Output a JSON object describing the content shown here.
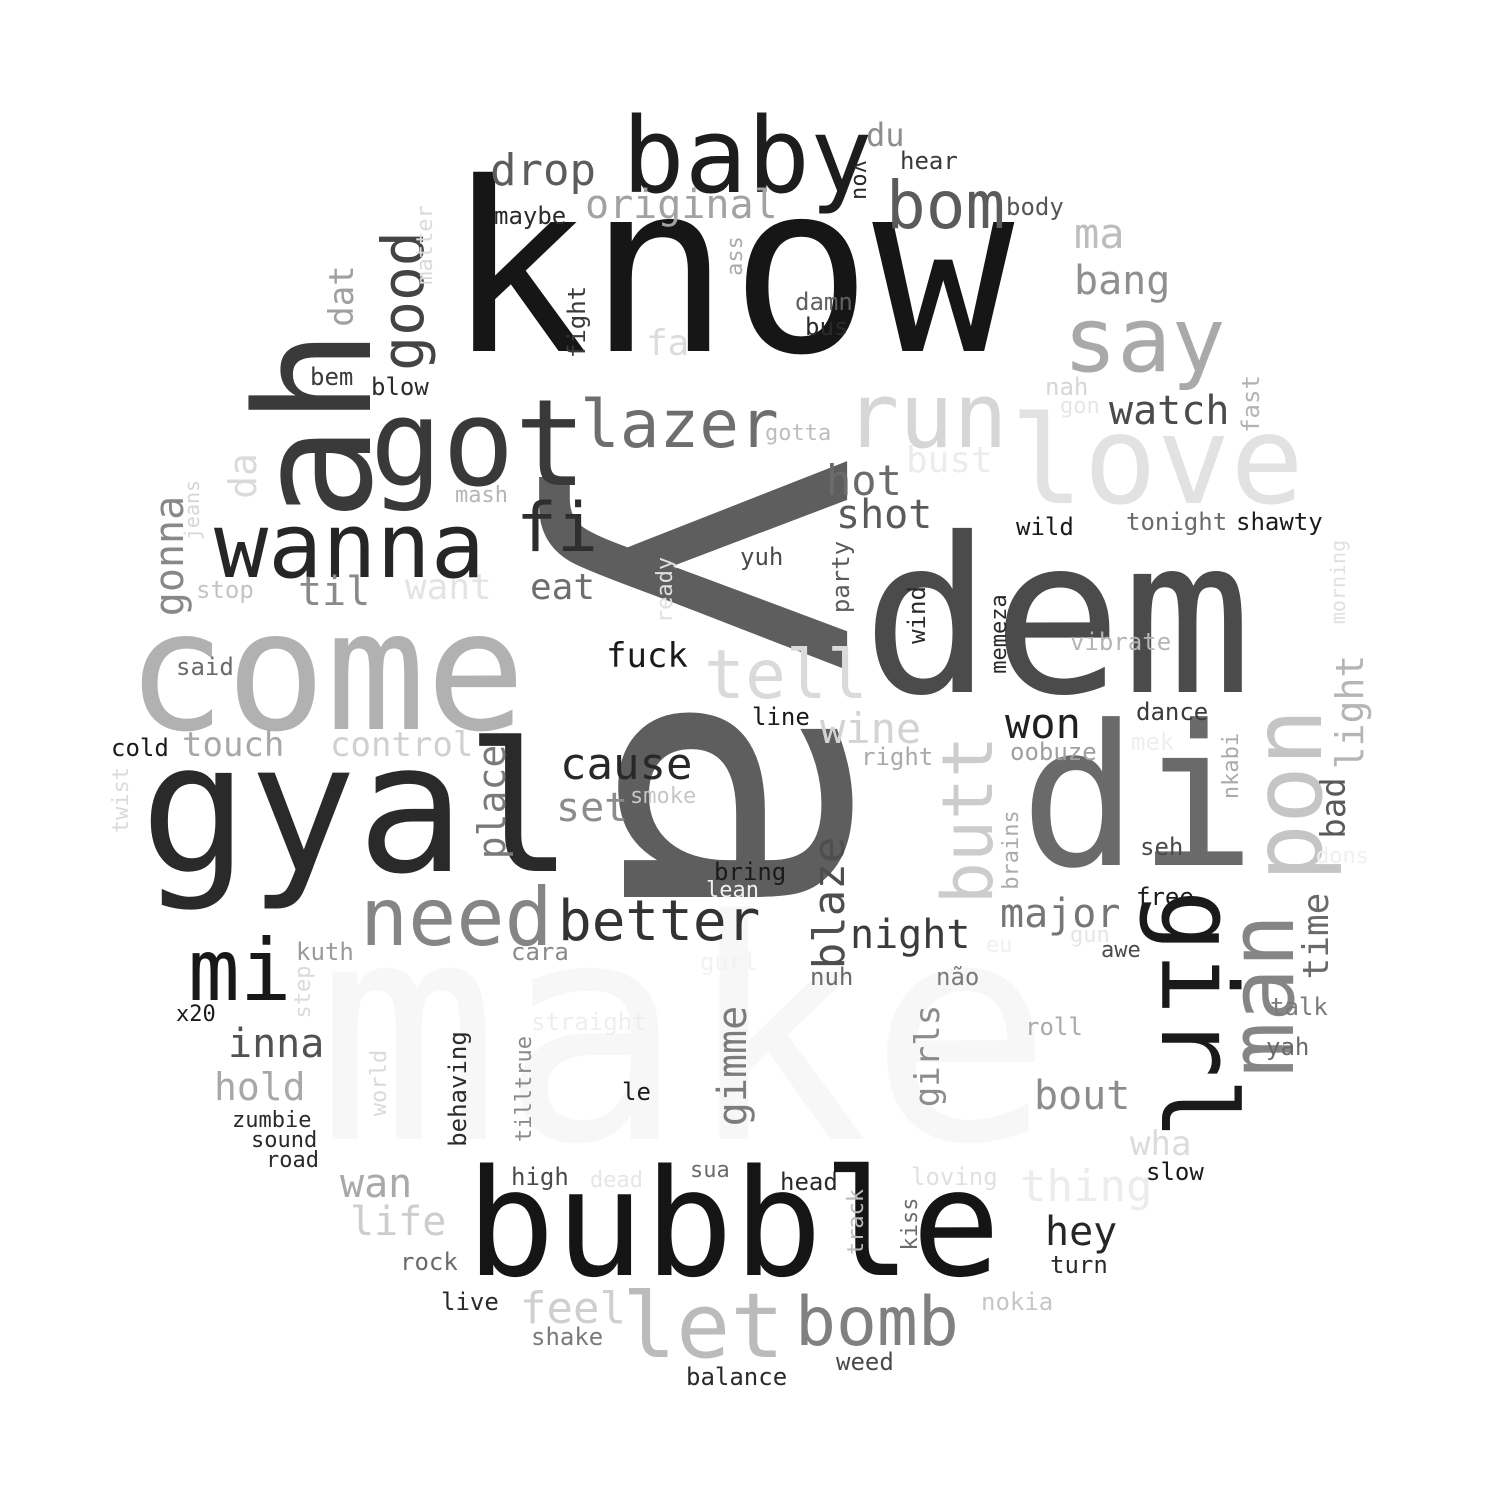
{
  "cloud": {
    "words": [
      {
        "text": "make",
        "c": "#f7f7f7"
      },
      {
        "text": "ya",
        "c": "#5e5e5e"
      },
      {
        "text": "know",
        "c": "#161616"
      },
      {
        "text": "dem",
        "c": "#4b4b4b"
      },
      {
        "text": "come",
        "c": "#b1b1b1"
      },
      {
        "text": "gyal",
        "c": "#2a2a2a"
      },
      {
        "text": "bubble",
        "c": "#151515"
      },
      {
        "text": "di",
        "c": "#6a6a6a"
      },
      {
        "text": "ah",
        "c": "#3a3a3a"
      },
      {
        "text": "love",
        "c": "#e2e2e2"
      },
      {
        "text": "baby",
        "c": "#1d1d1d"
      },
      {
        "text": "got",
        "c": "#393939"
      },
      {
        "text": "run",
        "c": "#d6d6d6"
      },
      {
        "text": "say",
        "c": "#a9a9a9"
      },
      {
        "text": "wanna",
        "c": "#262626"
      },
      {
        "text": "girl",
        "c": "#1a1a1a"
      },
      {
        "text": "man",
        "c": "#858585"
      },
      {
        "text": "pon",
        "c": "#c5c5c5"
      },
      {
        "text": "need",
        "c": "#858585"
      },
      {
        "text": "let",
        "c": "#bbbbbb"
      },
      {
        "text": "bomb",
        "c": "#808080"
      },
      {
        "text": "mi",
        "c": "#181818"
      },
      {
        "text": "bom",
        "c": "#5b5b5b"
      },
      {
        "text": "lazer",
        "c": "#6e6e6e"
      },
      {
        "text": "butt",
        "c": "#cccccc"
      },
      {
        "text": "tell",
        "c": "#dadada"
      },
      {
        "text": "fi",
        "c": "#2e2e2e"
      },
      {
        "text": "better",
        "c": "#333333"
      },
      {
        "text": "good",
        "c": "#444444"
      },
      {
        "text": "cause",
        "c": "#282828"
      },
      {
        "text": "drop",
        "c": "#5c5c5c"
      },
      {
        "text": "original",
        "c": "#a2a2a2"
      },
      {
        "text": "won",
        "c": "#202020"
      },
      {
        "text": "hot",
        "c": "#6b6b6b"
      },
      {
        "text": "shot",
        "c": "#5a5a5a"
      },
      {
        "text": "watch",
        "c": "#4b4b4b"
      },
      {
        "text": "bang",
        "c": "#8f8f8f"
      },
      {
        "text": "ma",
        "c": "#bdbdbd"
      },
      {
        "text": "major",
        "c": "#767676"
      },
      {
        "text": "night",
        "c": "#3b3b3b"
      },
      {
        "text": "blaze",
        "c": "#4e4e4e"
      },
      {
        "text": "wine",
        "c": "#d3d3d3"
      },
      {
        "text": "gonna",
        "c": "#888888"
      },
      {
        "text": "til",
        "c": "#8a8a8a"
      },
      {
        "text": "want",
        "c": "#e4e4e4"
      },
      {
        "text": "eat",
        "c": "#6e6e6e"
      },
      {
        "text": "fuck",
        "c": "#1a1a1a"
      },
      {
        "text": "touch",
        "c": "#a7a7a7"
      },
      {
        "text": "control",
        "c": "#d0d0d0"
      },
      {
        "text": "set",
        "c": "#8c8c8c"
      },
      {
        "text": "place",
        "c": "#7a7a7a"
      },
      {
        "text": "inna",
        "c": "#525252"
      },
      {
        "text": "hold",
        "c": "#a8a8a8"
      },
      {
        "text": "wan",
        "c": "#a9a9a9"
      },
      {
        "text": "life",
        "c": "#cdcdcd"
      },
      {
        "text": "gimme",
        "c": "#7c7c7c"
      },
      {
        "text": "girls",
        "c": "#8c8c8c"
      },
      {
        "text": "bout",
        "c": "#8c8c8c"
      },
      {
        "text": "hey",
        "c": "#262626"
      },
      {
        "text": "thing",
        "c": "#ececec"
      },
      {
        "text": "feel",
        "c": "#cfcfcf"
      },
      {
        "text": "time",
        "c": "#6a6a6a"
      },
      {
        "text": "bad",
        "c": "#595959"
      },
      {
        "text": "light",
        "c": "#b5b5b5"
      },
      {
        "text": "da",
        "c": "#dadada"
      },
      {
        "text": "dat",
        "c": "#a0a0a0"
      },
      {
        "text": "du",
        "c": "#8d8d8d"
      },
      {
        "text": "fa",
        "c": "#dcdcdc"
      },
      {
        "text": "bust",
        "c": "#ececec"
      },
      {
        "text": "wha",
        "c": "#dcdcdc"
      },
      {
        "text": "hear",
        "c": "#3a3a3a"
      },
      {
        "text": "body",
        "c": "#555555"
      },
      {
        "text": "vou",
        "c": "#2a2a2a"
      },
      {
        "text": "maybe",
        "c": "#2a2a2a"
      },
      {
        "text": "matter",
        "c": "#dadada"
      },
      {
        "text": "ass",
        "c": "#aaaaaa"
      },
      {
        "text": "damn",
        "c": "#606060"
      },
      {
        "text": "bus",
        "c": "#2a2a2a"
      },
      {
        "text": "fight",
        "c": "#3a3a3a"
      },
      {
        "text": "bem",
        "c": "#3a3a3a"
      },
      {
        "text": "blow",
        "c": "#2a2a2a"
      },
      {
        "text": "nah",
        "c": "#d6d6d6"
      },
      {
        "text": "gon",
        "c": "#e6e6e6"
      },
      {
        "text": "fast",
        "c": "#b3b3b3"
      },
      {
        "text": "gotta",
        "c": "#bdbdbd"
      },
      {
        "text": "mash",
        "c": "#b5b5b5"
      },
      {
        "text": "jeans",
        "c": "#d6d6d6"
      },
      {
        "text": "wild",
        "c": "#1a1a1a"
      },
      {
        "text": "tonight",
        "c": "#6a6a6a"
      },
      {
        "text": "shawty",
        "c": "#1a1a1a"
      },
      {
        "text": "yuh",
        "c": "#4a4a4a"
      },
      {
        "text": "stop",
        "c": "#c4c4c4"
      },
      {
        "text": "ready",
        "c": "#e0e0e0"
      },
      {
        "text": "party",
        "c": "#5a5a5a"
      },
      {
        "text": "wind",
        "c": "#2a2a2a"
      },
      {
        "text": "memeza",
        "c": "#2a2a2a"
      },
      {
        "text": "vibrate",
        "c": "#b5b5b5"
      },
      {
        "text": "morning",
        "c": "#e0e0e0"
      },
      {
        "text": "said",
        "c": "#6a6a6a"
      },
      {
        "text": "line",
        "c": "#1a1a1a"
      },
      {
        "text": "cold",
        "c": "#1a1a1a"
      },
      {
        "text": "right",
        "c": "#aaaaaa"
      },
      {
        "text": "oobuze",
        "c": "#a0a0a0"
      },
      {
        "text": "dance",
        "c": "#3a3a3a"
      },
      {
        "text": "mek",
        "c": "#eeeeee"
      },
      {
        "text": "nkabi",
        "c": "#aaaaaa"
      },
      {
        "text": "twist",
        "c": "#dadada"
      },
      {
        "text": "smoke",
        "c": "#c6c6c6"
      },
      {
        "text": "brains",
        "c": "#aaaaaa"
      },
      {
        "text": "seh",
        "c": "#4a4a4a"
      },
      {
        "text": "dons",
        "c": "#f0f0f0"
      },
      {
        "text": "bring",
        "c": "#1a1a1a"
      },
      {
        "text": "lean",
        "c": "#f0f0f0"
      },
      {
        "text": "free",
        "c": "#1a1a1a"
      },
      {
        "text": "kuth",
        "c": "#9a9a9a"
      },
      {
        "text": "cara",
        "c": "#8a8a8a"
      },
      {
        "text": "eu",
        "c": "#f0f0f0"
      },
      {
        "text": "gun",
        "c": "#e6e6e6"
      },
      {
        "text": "awe",
        "c": "#4a4a4a"
      },
      {
        "text": "gurl",
        "c": "#f2f2f2"
      },
      {
        "text": "nuh",
        "c": "#6a6a6a"
      },
      {
        "text": "não",
        "c": "#7a7a7a"
      },
      {
        "text": "step",
        "c": "#dadada"
      },
      {
        "text": "x20",
        "c": "#1a1a1a"
      },
      {
        "text": "straight",
        "c": "#eeeeee"
      },
      {
        "text": "roll",
        "c": "#aaaaaa"
      },
      {
        "text": "talk",
        "c": "#7a7a7a"
      },
      {
        "text": "yah",
        "c": "#6a6a6a"
      },
      {
        "text": "world",
        "c": "#dadada"
      },
      {
        "text": "behaving",
        "c": "#2a2a2a"
      },
      {
        "text": "tilltrue",
        "c": "#8a8a8a"
      },
      {
        "text": "le",
        "c": "#1a1a1a"
      },
      {
        "text": "zumbie",
        "c": "#2a2a2a"
      },
      {
        "text": "sound",
        "c": "#2a2a2a"
      },
      {
        "text": "road",
        "c": "#2a2a2a"
      },
      {
        "text": "high",
        "c": "#4a4a4a"
      },
      {
        "text": "dead",
        "c": "#e6e6e6"
      },
      {
        "text": "sua",
        "c": "#6a6a6a"
      },
      {
        "text": "head",
        "c": "#2a2a2a"
      },
      {
        "text": "loving",
        "c": "#e0e0e0"
      },
      {
        "text": "track",
        "c": "#bababa"
      },
      {
        "text": "kiss",
        "c": "#6a6a6a"
      },
      {
        "text": "slow",
        "c": "#1a1a1a"
      },
      {
        "text": "rock",
        "c": "#6a6a6a"
      },
      {
        "text": "turn",
        "c": "#2a2a2a"
      },
      {
        "text": "live",
        "c": "#2a2a2a"
      },
      {
        "text": "shake",
        "c": "#7a7a7a"
      },
      {
        "text": "nokia",
        "c": "#c6c6c6"
      },
      {
        "text": "balance",
        "c": "#2a2a2a"
      },
      {
        "text": "weed",
        "c": "#4a4a4a"
      }
    ]
  }
}
